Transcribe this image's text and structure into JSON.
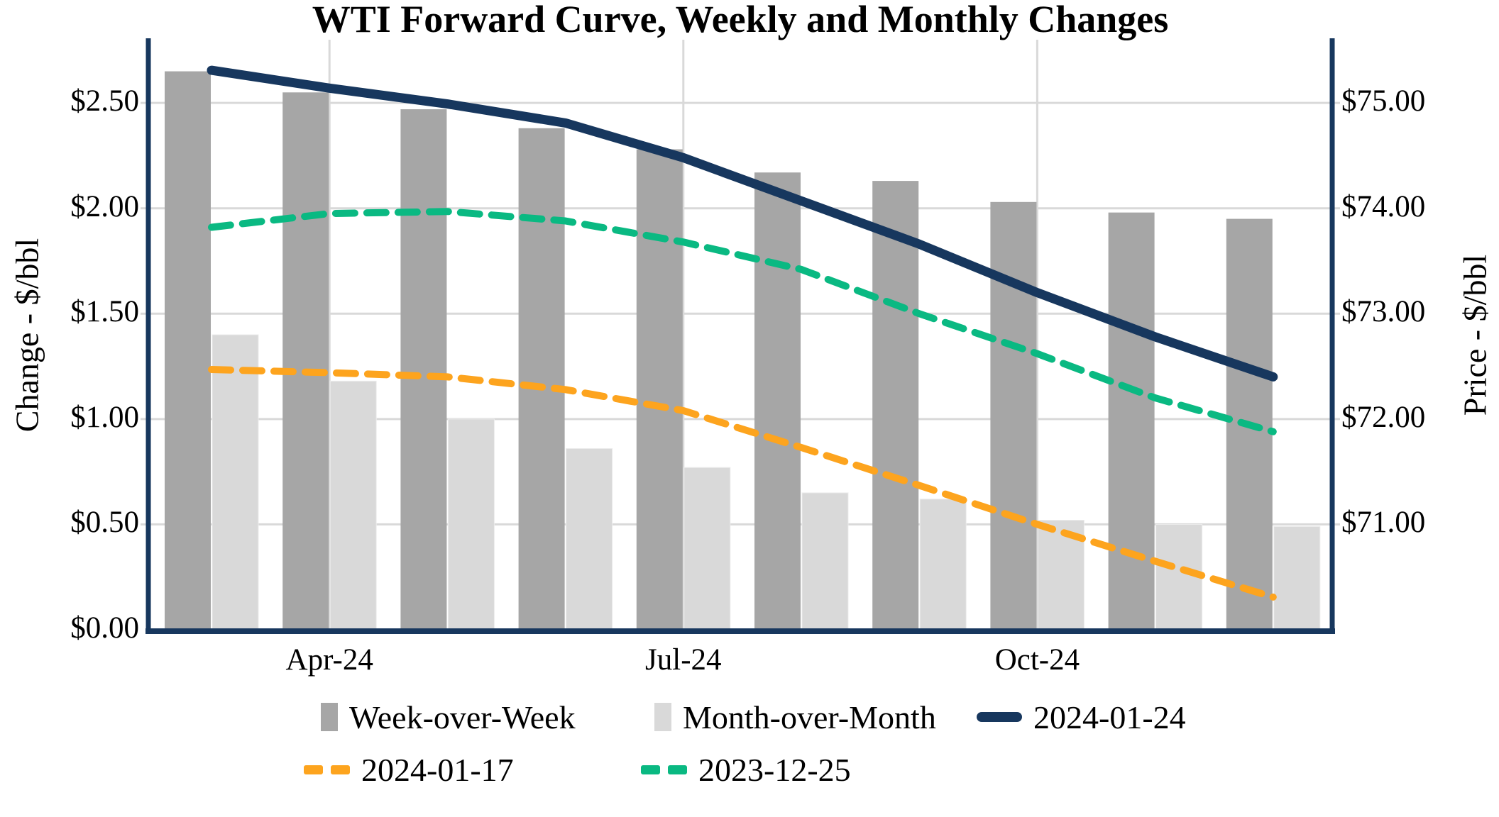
{
  "title": "WTI Forward Curve, Weekly and Monthly Changes",
  "axes": {
    "left": {
      "title": "Change - $/bbl",
      "tick_labels": [
        "$0.00",
        "$0.50",
        "$1.00",
        "$1.50",
        "$2.00",
        "$2.50"
      ]
    },
    "right": {
      "title": "Price - $/bbl",
      "tick_labels": [
        "$71.00",
        "$72.00",
        "$73.00",
        "$74.00",
        "$75.00"
      ]
    },
    "x": {
      "tick_labels": [
        "Apr-24",
        "Jul-24",
        "Oct-24"
      ]
    }
  },
  "legend": {
    "week_over_week": "Week-over-Week",
    "month_over_month": "Month-over-Month",
    "curve_2024_01_24": "2024-01-24",
    "curve_2024_01_17": "2024-01-17",
    "curve_2023_12_25": "2023-12-25"
  },
  "colors": {
    "navy": "#17375E",
    "orange": "#FDA41E",
    "green": "#0AB982",
    "bar_dark": "#A6A6A6",
    "bar_light": "#D9D9D9",
    "gridline": "#D9D9D9",
    "background": "#FFFFFF",
    "text": "#000000"
  },
  "chart_data": {
    "type": "bar+line combo, dual y-axis",
    "title": "WTI Forward Curve, Weekly and Monthly Changes",
    "n_groups": 10,
    "categories": [
      "",
      "Apr-24",
      "",
      "",
      "Jul-24",
      "",
      "",
      "Oct-24",
      "",
      ""
    ],
    "x_tick_labels": [
      "Apr-24",
      "Jul-24",
      "Oct-24"
    ],
    "x_tick_indices": [
      1,
      4,
      7
    ],
    "left_ylabel": "Change - $/bbl",
    "right_ylabel": "Price - $/bbl",
    "left_ylim": [
      0,
      2.8
    ],
    "right_ylim": [
      70,
      75.6
    ],
    "left_tick_step": 0.5,
    "right_tick_step": 1.0,
    "grid": true,
    "legend_position": "bottom",
    "bar_series": [
      {
        "name": "Week-over-Week",
        "axis": "left",
        "color": "#A6A6A6",
        "values": [
          2.65,
          2.55,
          2.47,
          2.38,
          2.28,
          2.17,
          2.13,
          2.03,
          1.98,
          1.95
        ]
      },
      {
        "name": "Month-over-Month",
        "axis": "left",
        "color": "#D9D9D9",
        "values": [
          1.4,
          1.18,
          1.0,
          0.86,
          0.77,
          0.65,
          0.62,
          0.52,
          0.5,
          0.49
        ]
      }
    ],
    "line_series": [
      {
        "name": "2024-01-24",
        "axis": "right",
        "color": "#17375E",
        "style": "solid",
        "values": [
          75.31,
          75.14,
          74.99,
          74.81,
          74.48,
          74.07,
          73.66,
          73.2,
          72.78,
          72.4
        ]
      },
      {
        "name": "2024-01-17",
        "axis": "right",
        "color": "#FDA41E",
        "style": "dashed",
        "values": [
          72.47,
          72.44,
          72.4,
          72.28,
          72.08,
          71.73,
          71.37,
          71.0,
          70.65,
          70.31
        ]
      },
      {
        "name": "2023-12-25",
        "axis": "right",
        "color": "#0AB982",
        "style": "dashed",
        "values": [
          73.82,
          73.95,
          73.97,
          73.88,
          73.68,
          73.42,
          73.0,
          72.62,
          72.2,
          71.88
        ]
      }
    ]
  }
}
